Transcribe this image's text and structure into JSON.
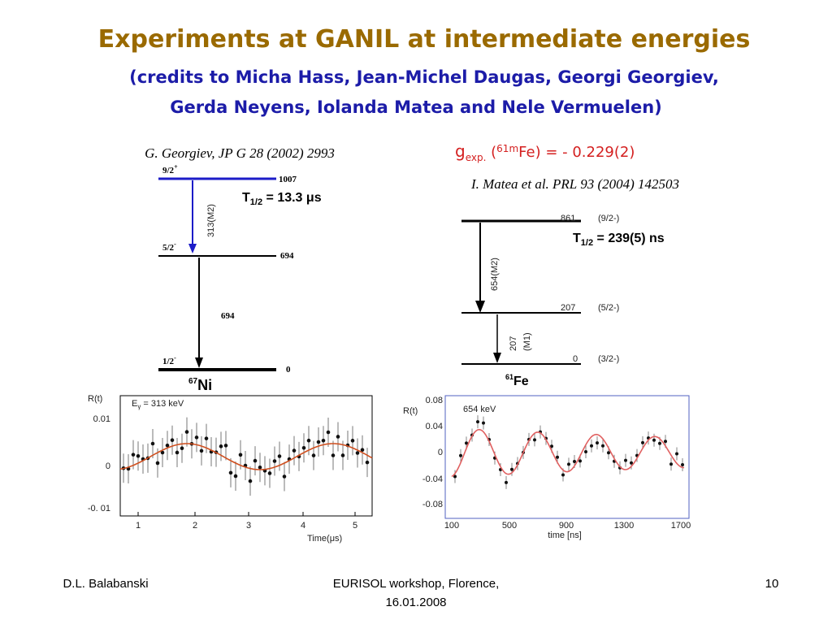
{
  "header": {
    "title": "Experiments at GANIL at intermediate energies",
    "subtitle": [
      "(credits to Micha Hass, Jean-Michel Daugas, Georgi Georgiev,",
      "Gerda Neyens, Iolanda Matea and Nele Vermuelen)"
    ]
  },
  "left": {
    "reference": "G. Georgiev, JP G 28 (2002) 2993",
    "levels": [
      {
        "spin": "9/2",
        "parity": "+",
        "energy": "1007"
      },
      {
        "spin": "5/2",
        "parity": "-",
        "energy": "694"
      },
      {
        "spin": "1/2",
        "parity": "-",
        "energy": "0"
      }
    ],
    "transitions": [
      "313(M2)",
      "694"
    ],
    "half_life": {
      "symbol": "T",
      "sub": "1/2",
      "text": " = 13.3 μs"
    },
    "nucleus": {
      "mass": "67",
      "element": "Ni"
    },
    "plot": {
      "ylabel": "R(t)",
      "legend": {
        "symbol": "E",
        "sub": "γ",
        "text": " = 313 keV"
      },
      "yticks": [
        "0.01",
        "0",
        "-0. 01"
      ],
      "xticks": [
        "1",
        "2",
        "3",
        "4",
        "5"
      ],
      "xlabel": "Time(μs)"
    }
  },
  "right": {
    "g_factor": {
      "symbol": "g",
      "sub": "exp.",
      "open": " (",
      "sup": "61m",
      "text": "Fe) = - 0.229(2)"
    },
    "reference": "I. Matea et al. PRL 93 (2004) 142503",
    "levels": [
      {
        "energy": "861",
        "spin": "(9/2-)"
      },
      {
        "energy": "207",
        "spin": "(5/2-)"
      },
      {
        "energy": "0",
        "spin": "(3/2-)"
      }
    ],
    "transitions": [
      "654(M2)",
      "207",
      "(M1)"
    ],
    "half_life": {
      "symbol": "T",
      "sub": "1/2",
      "text": " = 239(5) ns"
    },
    "nucleus": {
      "mass": "61",
      "element": "Fe"
    },
    "plot": {
      "ylabel": "R(t)",
      "legend": "654 keV",
      "yticks": [
        "0.08",
        "0.04",
        "0",
        "-0.04",
        "-0.08"
      ],
      "xticks": [
        "100",
        "500",
        "900",
        "1300",
        "1700"
      ],
      "xlabel": "time [ns]"
    }
  },
  "footer": {
    "author": "D.L. Balabanski",
    "event": [
      "EURISOL workshop, Florence,",
      "16.01.2008"
    ],
    "page": "10"
  }
}
